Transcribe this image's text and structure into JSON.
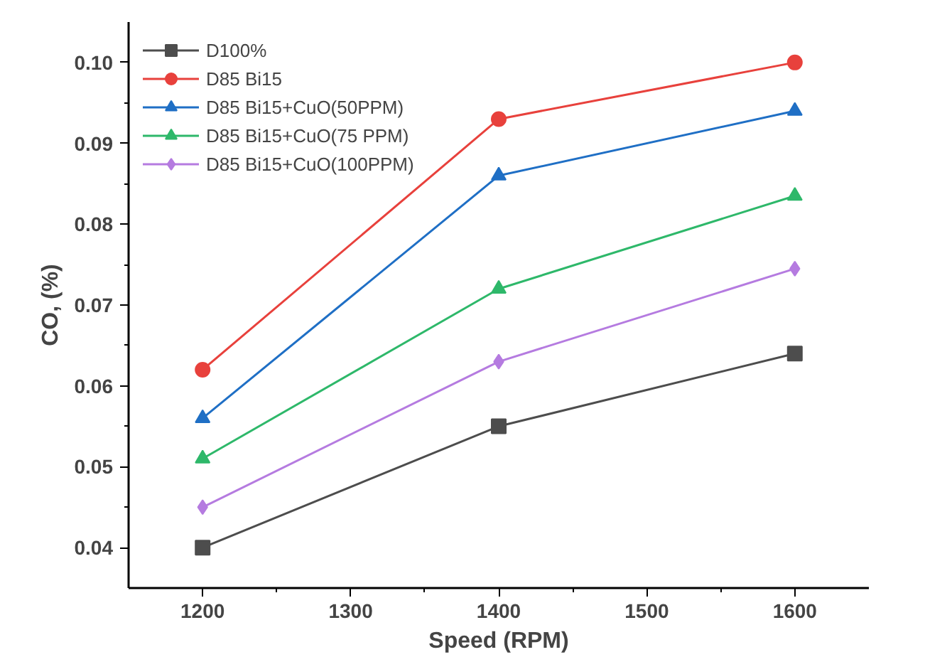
{
  "chart_data": {
    "type": "line",
    "xlabel": "Speed (RPM)",
    "ylabel": "CO, (%)",
    "x": [
      1200,
      1400,
      1600
    ],
    "series": [
      {
        "name": "D100%",
        "color": "#4d4d4d",
        "marker": "square",
        "values": [
          0.04,
          0.055,
          0.064
        ]
      },
      {
        "name": "D85 Bi15",
        "color": "#e8413c",
        "marker": "circle",
        "values": [
          0.062,
          0.093,
          0.1
        ]
      },
      {
        "name": "D85 Bi15+CuO(50PPM)",
        "color": "#1f6fc5",
        "marker": "triangle",
        "values": [
          0.056,
          0.086,
          0.094
        ]
      },
      {
        "name": "D85 Bi15+CuO(75 PPM)",
        "color": "#2eb86a",
        "marker": "triangle",
        "values": [
          0.051,
          0.072,
          0.0835
        ]
      },
      {
        "name": "D85 Bi15+CuO(100PPM)",
        "color": "#b57be0",
        "marker": "diamond",
        "values": [
          0.045,
          0.063,
          0.0745
        ]
      }
    ],
    "xlim": [
      1150,
      1650
    ],
    "ylim": [
      0.035,
      0.105
    ],
    "xticks": [
      1200,
      1300,
      1400,
      1500,
      1600
    ],
    "yticks": [
      0.04,
      0.05,
      0.06,
      0.07,
      0.08,
      0.09,
      {
        "value": 0.1,
        "label": "0.10"
      }
    ],
    "grid": false,
    "legend": "top left",
    "line_style": "solid"
  }
}
